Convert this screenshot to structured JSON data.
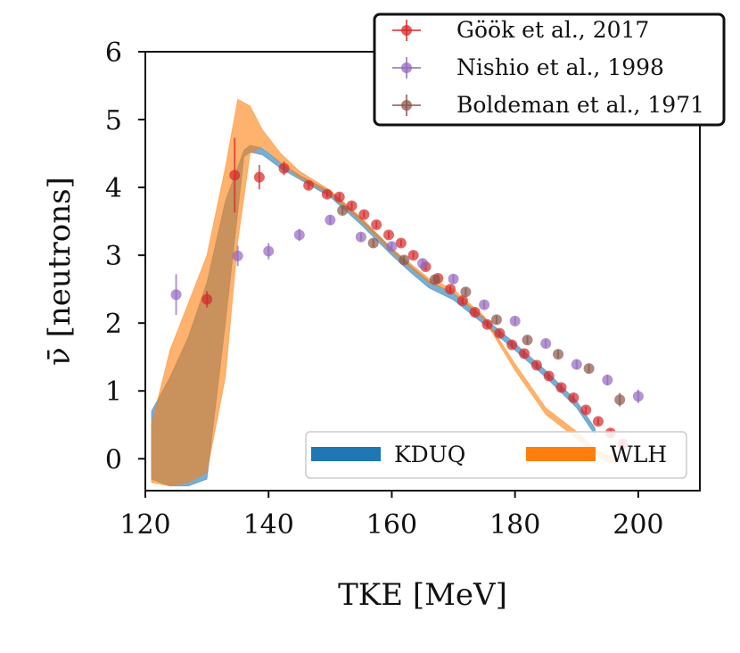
{
  "chart_data": {
    "type": "scatter",
    "xlabel": "TKE [MeV]",
    "ylabel": "ν̄ [neutrons]",
    "xlim": [
      120,
      210
    ],
    "ylim": [
      -0.47,
      6
    ],
    "xticks": [
      120,
      140,
      160,
      180,
      200
    ],
    "yticks": [
      0,
      1,
      2,
      3,
      4,
      5,
      6
    ],
    "grid": false,
    "legend_experiments": {
      "placement": "top-right",
      "entries": [
        "Göök et al., 2017",
        "Nishio et al., 1998",
        "Boldeman et al., 1971"
      ]
    },
    "legend_models": {
      "placement": "lower-right",
      "entries": [
        "KDUQ",
        "WLH"
      ]
    },
    "series": [
      {
        "name": "Göök et al., 2017",
        "kind": "errorbar",
        "color": "#d62728",
        "x": [
          130,
          134.5,
          138.5,
          142.5,
          146.5,
          149.5,
          151.5,
          153.5,
          155.5,
          157.5,
          159.5,
          161.5,
          163.5,
          165.5,
          167.5,
          169.5,
          171.5,
          173.5,
          175.5,
          177.5,
          179.5,
          181.5,
          183.5,
          185.5,
          187.5,
          189.5,
          191.5,
          193.5,
          195.5,
          197.5
        ],
        "y": [
          2.35,
          4.18,
          4.15,
          4.28,
          4.03,
          3.9,
          3.86,
          3.73,
          3.6,
          3.45,
          3.3,
          3.18,
          3.0,
          2.83,
          2.66,
          2.5,
          2.33,
          2.16,
          1.98,
          1.85,
          1.68,
          1.55,
          1.38,
          1.22,
          1.05,
          0.9,
          0.72,
          0.55,
          0.38,
          0.22
        ],
        "yerr": [
          0.12,
          0.55,
          0.18,
          0.1,
          0.05,
          0.05,
          0.05,
          0.05,
          0.05,
          0.05,
          0.05,
          0.05,
          0.05,
          0.05,
          0.05,
          0.05,
          0.05,
          0.05,
          0.05,
          0.05,
          0.05,
          0.05,
          0.05,
          0.05,
          0.05,
          0.05,
          0.05,
          0.05,
          0.05,
          0.05
        ]
      },
      {
        "name": "Nishio et al., 1998",
        "kind": "errorbar",
        "color": "#9467bd",
        "x": [
          125,
          135,
          140,
          145,
          150,
          155,
          160,
          165,
          170,
          175,
          180,
          185,
          190,
          195,
          200
        ],
        "y": [
          2.42,
          2.99,
          3.06,
          3.3,
          3.52,
          3.27,
          3.13,
          2.88,
          2.65,
          2.27,
          2.03,
          1.7,
          1.39,
          1.16,
          0.92
        ],
        "yerr": [
          0.3,
          0.15,
          0.12,
          0.09,
          0.07,
          0.06,
          0.06,
          0.06,
          0.06,
          0.06,
          0.06,
          0.06,
          0.07,
          0.08,
          0.1
        ]
      },
      {
        "name": "Boldeman et al., 1971",
        "kind": "errorbar",
        "color": "#8c564b",
        "x": [
          152,
          157,
          162,
          167,
          172,
          177,
          182,
          187,
          192,
          197
        ],
        "y": [
          3.66,
          3.18,
          2.93,
          2.64,
          2.46,
          2.05,
          1.75,
          1.54,
          1.33,
          0.87
        ],
        "yerr": [
          0.06,
          0.06,
          0.06,
          0.06,
          0.06,
          0.06,
          0.06,
          0.06,
          0.06,
          0.1
        ]
      },
      {
        "name": "KDUQ",
        "kind": "band",
        "color": "#1f77b4",
        "x": [
          121,
          124,
          127,
          130,
          133,
          136,
          137,
          139,
          142,
          145,
          150,
          155,
          160,
          163,
          166,
          170,
          175,
          180,
          185,
          190,
          193
        ],
        "lower": [
          -0.3,
          -0.4,
          -0.4,
          -0.3,
          2.0,
          4.45,
          4.52,
          4.48,
          4.28,
          4.12,
          3.86,
          3.45,
          3.0,
          2.75,
          2.52,
          2.34,
          1.98,
          1.6,
          1.2,
          0.75,
          0.35
        ],
        "upper": [
          0.7,
          1.2,
          1.8,
          2.6,
          3.8,
          4.55,
          4.62,
          4.58,
          4.36,
          4.18,
          3.94,
          3.54,
          3.1,
          2.85,
          2.62,
          2.44,
          2.08,
          1.7,
          1.3,
          0.85,
          0.45
        ]
      },
      {
        "name": "WLH",
        "kind": "band",
        "color": "#ff7f0e",
        "x": [
          121,
          124,
          127,
          130,
          133,
          135,
          137,
          139,
          142,
          145,
          150,
          155,
          160,
          163,
          166,
          170,
          175,
          180,
          185,
          190,
          193,
          195,
          197
        ],
        "lower": [
          -0.35,
          -0.4,
          -0.35,
          -0.2,
          1.2,
          3.2,
          4.5,
          4.6,
          4.36,
          4.15,
          3.9,
          3.5,
          3.05,
          2.82,
          2.6,
          2.45,
          2.05,
          1.3,
          0.65,
          0.3,
          0.05,
          -0.05,
          -0.05
        ],
        "upper": [
          0.5,
          1.6,
          2.3,
          3.0,
          4.3,
          5.3,
          5.2,
          4.85,
          4.5,
          4.24,
          3.96,
          3.56,
          3.1,
          2.88,
          2.66,
          2.5,
          2.1,
          1.4,
          0.75,
          0.4,
          0.15,
          0.05,
          0.05
        ]
      }
    ]
  }
}
